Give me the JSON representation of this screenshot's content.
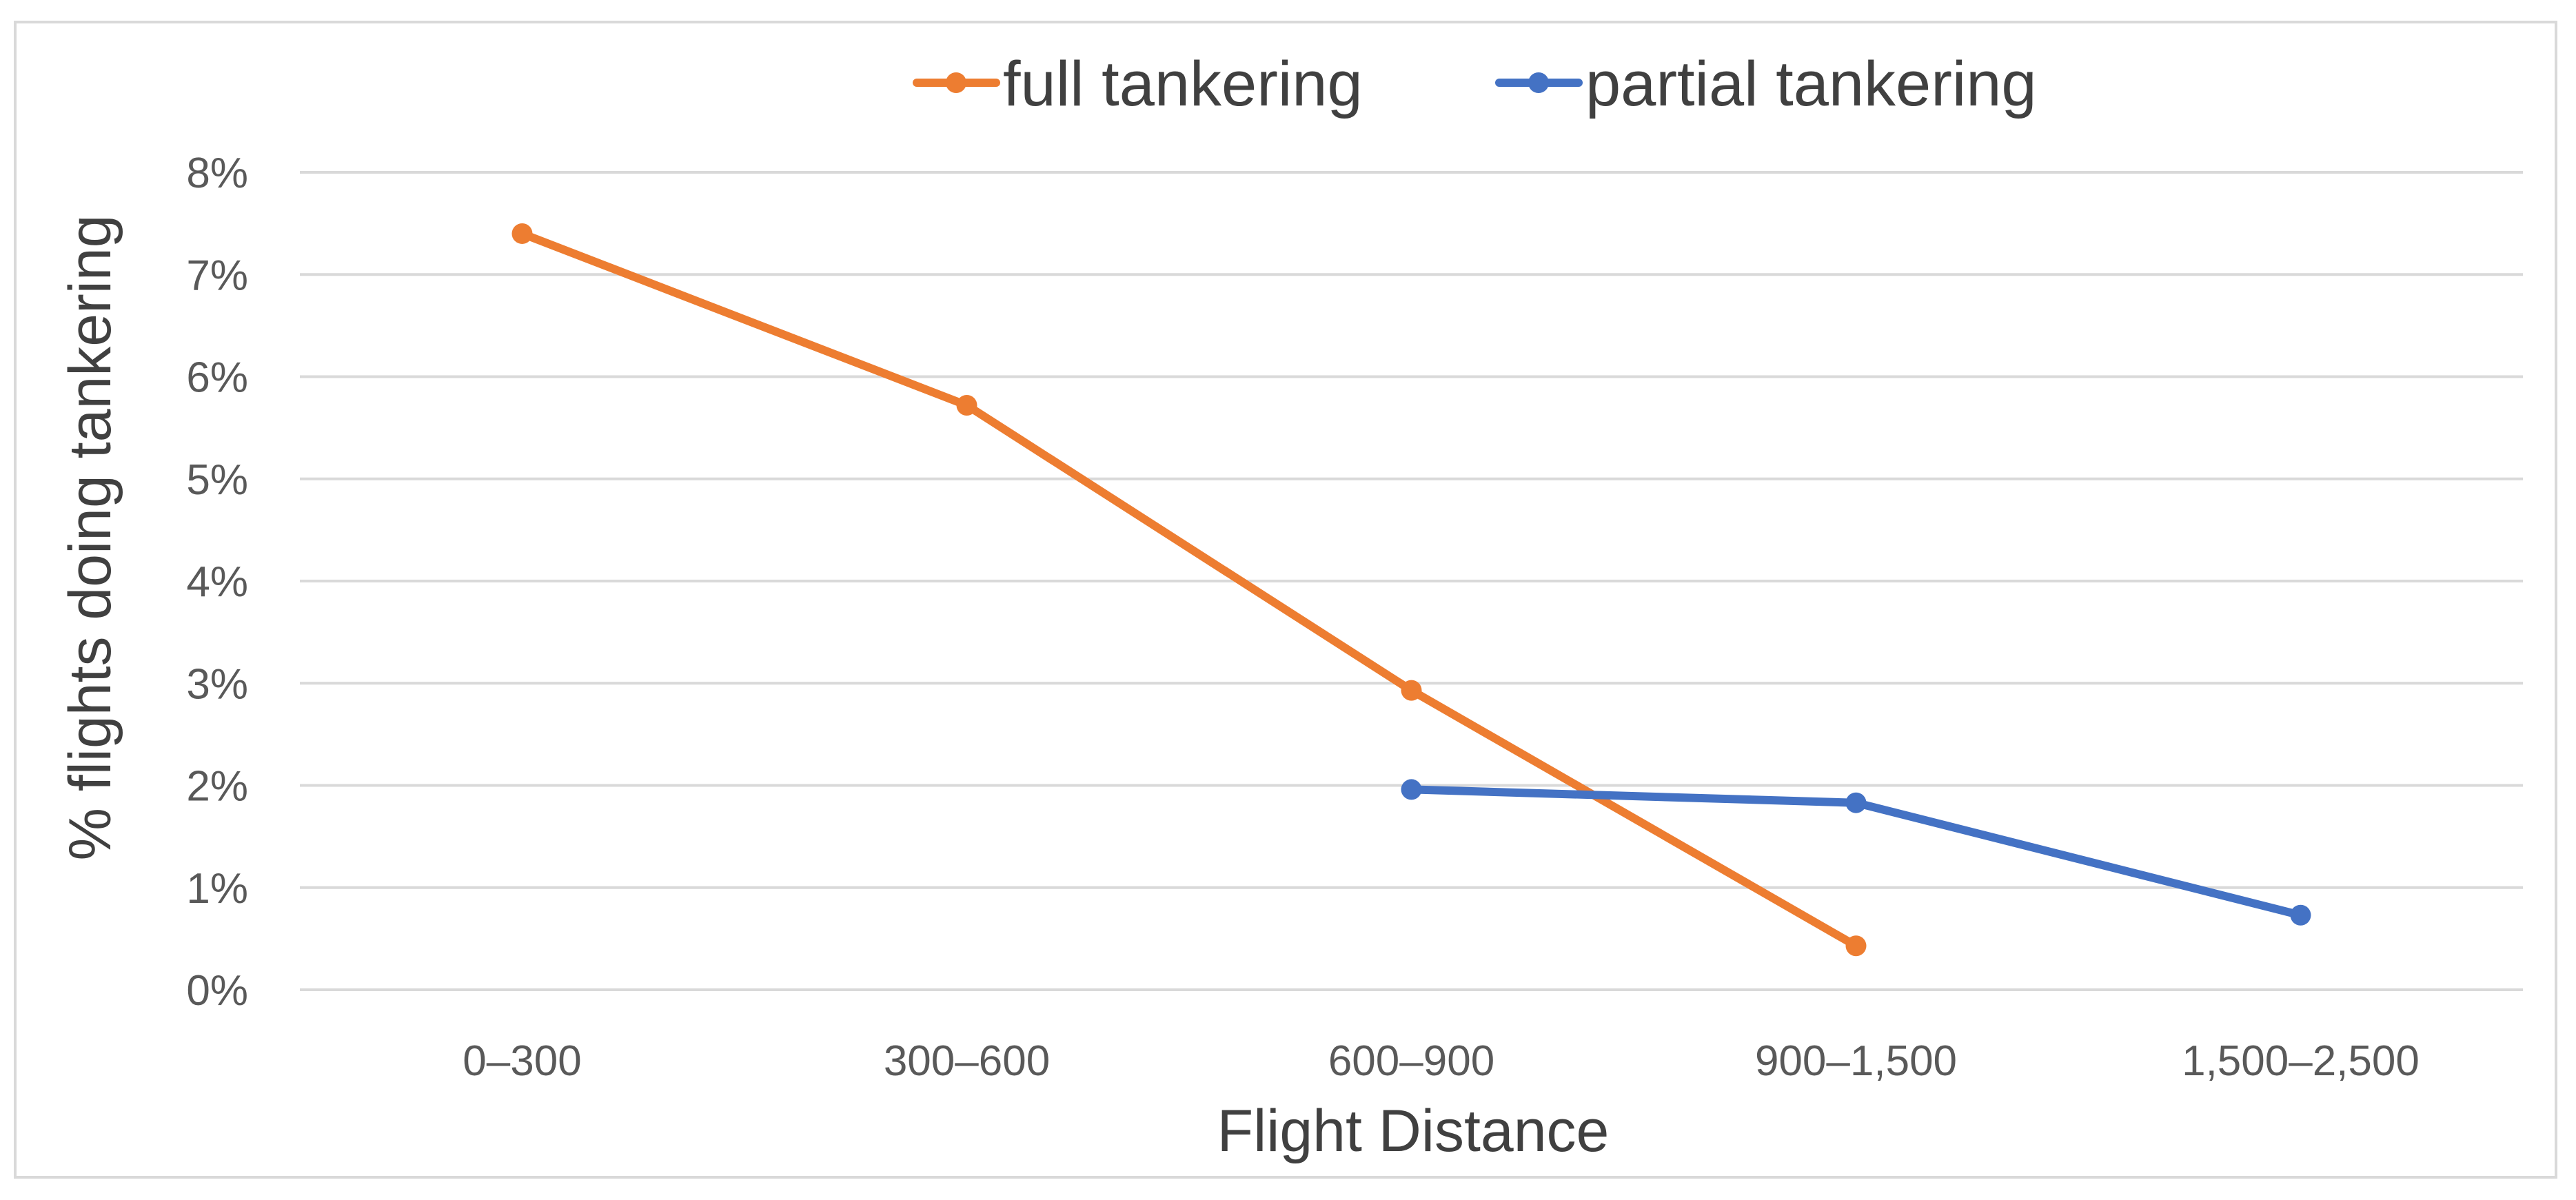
{
  "chart_data": {
    "type": "line",
    "title": "",
    "xlabel": "Flight Distance",
    "ylabel": "% flights doing tankering",
    "categories": [
      "0–300",
      "300–600",
      "600–900",
      "900–1,500",
      "1,500–2,500"
    ],
    "ylim": [
      0,
      8
    ],
    "y_ticks": [
      0,
      1,
      2,
      3,
      4,
      5,
      6,
      7,
      8
    ],
    "y_tick_labels": [
      "0%",
      "1%",
      "2%",
      "3%",
      "4%",
      "5%",
      "6%",
      "7%",
      "8%"
    ],
    "grid": true,
    "legend_position": "top",
    "series": [
      {
        "name": "full tankering",
        "color": "#ED7D31",
        "values": [
          7.4,
          5.72,
          2.93,
          0.43,
          null
        ]
      },
      {
        "name": "partial tankering",
        "color": "#4472C4",
        "values": [
          null,
          null,
          1.96,
          1.83,
          0.73
        ]
      }
    ]
  }
}
